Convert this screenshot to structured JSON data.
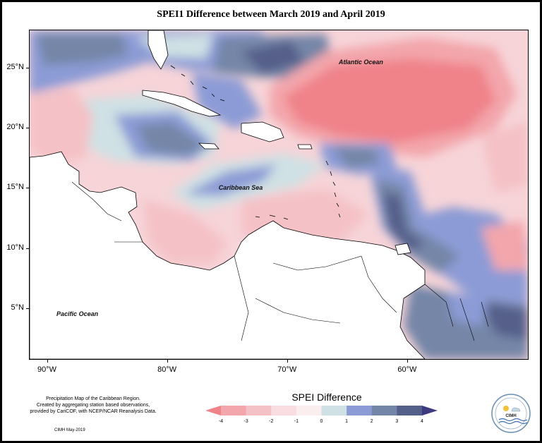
{
  "title": "SPEI1 Difference between March 2019 and April 2019",
  "map": {
    "ocean_labels": [
      {
        "text": "Atlantic Ocean",
        "lon": -64.0,
        "lat": 25.5
      },
      {
        "text": "Caribbean Sea",
        "lon": -74.0,
        "lat": 15.0
      },
      {
        "text": "Pacific Ocean",
        "lon": -87.5,
        "lat": 4.5
      }
    ],
    "lat_ticks": [
      {
        "label": "25°N",
        "value": 25
      },
      {
        "label": "20°N",
        "value": 20
      },
      {
        "label": "15°N",
        "value": 15
      },
      {
        "label": "10°N",
        "value": 10
      },
      {
        "label": "5°N",
        "value": 5
      }
    ],
    "lon_ticks": [
      {
        "label": "90°W",
        "value": -90
      },
      {
        "label": "80°W",
        "value": -80
      },
      {
        "label": "70°W",
        "value": -70
      },
      {
        "label": "60°W",
        "value": -60
      }
    ],
    "extent": {
      "lon_min": -91.5,
      "lon_max": -50.0,
      "lat_min": 0.8,
      "lat_max": 28.2
    }
  },
  "legend": {
    "title": "SPEI Difference",
    "ticks": [
      "-4",
      "-3",
      "-2",
      "-1",
      "0",
      "1",
      "2",
      "3",
      "4"
    ],
    "colors": [
      "#f0828a",
      "#f3a6ab",
      "#f4c1c6",
      "#f9dde1",
      "#fbeeee",
      "#cfe1e4",
      "#8c9bd6",
      "#7486a7",
      "#545f8a",
      "#3d3a80"
    ],
    "colors_note": "low to high; first and last colors are the under/over extension triangles"
  },
  "footnote": {
    "lines": [
      "Precipitation Map of the Caribbean Region.",
      "Created by aggregating station based observations,",
      "provided by CariCOF, with NCEP/NCAR Reanalysis Data."
    ],
    "credit": "CIMH May-2019"
  },
  "logo": {
    "text": "CIMH",
    "icon": "cimh-logo-icon"
  }
}
